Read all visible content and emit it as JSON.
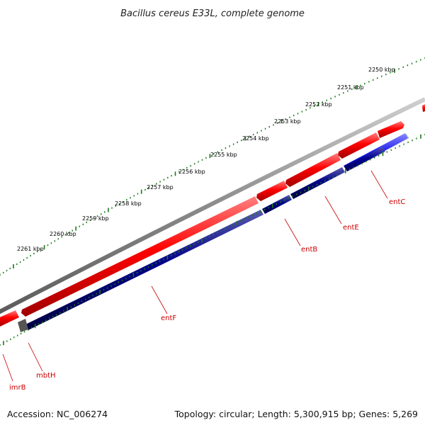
{
  "title": "Bacillus cereus E33L, complete genome",
  "footer": {
    "accession": "Accession: NC_006274",
    "topology": "Topology: circular; Length: 5,300,915 bp; Genes: 5,269"
  },
  "scale": {
    "labels": [
      "2250 kbp",
      "2251 kbp",
      "2252 kbp",
      "2253 kbp",
      "2254 kbp",
      "2255 kbp",
      "2256 kbp",
      "2257 kbp",
      "2258 kbp",
      "2259 kbp",
      "2260 kbp",
      "2261 kbp"
    ]
  },
  "genes": {
    "labels": [
      "entC",
      "entE",
      "entB",
      "entF",
      "mbtH",
      "imrB"
    ]
  },
  "colors": {
    "backbone": "#8a8a8a",
    "forward_gene": "#ee0000",
    "reverse_gene": "#000088",
    "reverse_gene_light": "#1a1aee",
    "tick": "#1a7a1a",
    "label": "#cc0000"
  }
}
